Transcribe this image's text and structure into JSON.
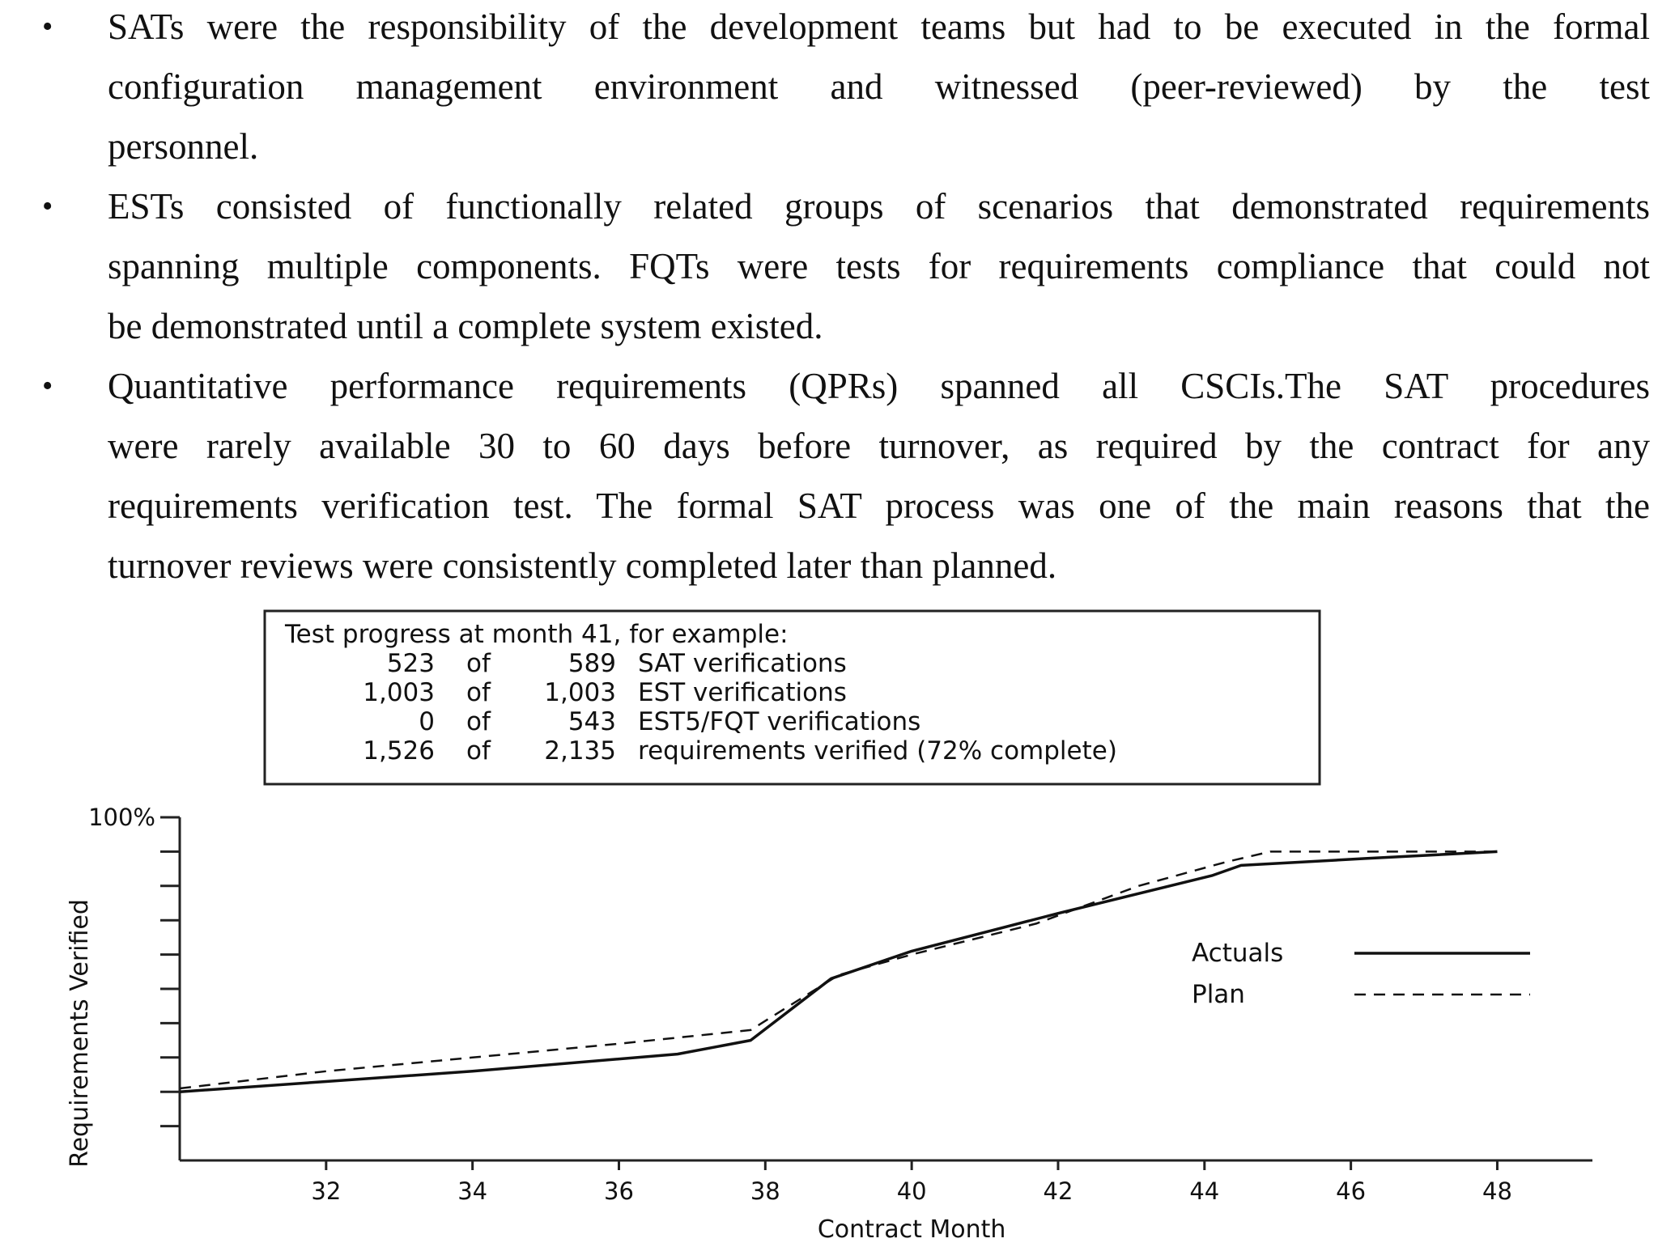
{
  "bullets": [
    {
      "lines": [
        "SATs were the responsibility of the development teams but had to be executed in the formal",
        "configuration management environment and witnessed (peer-reviewed) by the test",
        "personnel."
      ]
    },
    {
      "lines": [
        "ESTs consisted of functionally related groups of scenarios that demonstrated requirements",
        "spanning multiple components. FQTs were tests for requirements compliance that could not",
        "be demonstrated until a complete system existed."
      ]
    },
    {
      "lines": [
        "Quantitative performance requirements (QPRs) spanned all CSCIs.The SAT procedures",
        "were rarely available 30 to 60 days before turnover, as required by the contract for any",
        "requirements verification test. The formal SAT process was one of the main reasons that the",
        "turnover reviews were consistently completed later than planned."
      ]
    }
  ],
  "bullet_symbol": "•",
  "progress_box": {
    "title": "Test progress at month 41, for example:",
    "rows": [
      {
        "done": "523",
        "of": "of",
        "total": "589",
        "label": "SAT verifications"
      },
      {
        "done": "1,003",
        "of": "of",
        "total": "1,003",
        "label": "EST verifications"
      },
      {
        "done": "0",
        "of": "of",
        "total": "543",
        "label": "EST5/FQT verifications"
      },
      {
        "done": "1,526",
        "of": "of",
        "total": "2,135",
        "label": "requirements verified (72% complete)"
      }
    ]
  },
  "chart_data": {
    "type": "line",
    "xlabel": "Contract Month",
    "ylabel": "Requirements Verified",
    "x_ticks": [
      32,
      34,
      36,
      38,
      40,
      42,
      44,
      46,
      48
    ],
    "y_top_label": "100%",
    "xlim": [
      30,
      49.3
    ],
    "ylim": [
      0,
      100
    ],
    "y_minor_ticks": [
      10,
      20,
      30,
      40,
      50,
      60,
      70,
      80,
      90,
      100
    ],
    "legend_position": "right",
    "series": [
      {
        "name": "Actuals",
        "style": "solid",
        "points": [
          [
            30,
            20
          ],
          [
            32,
            23
          ],
          [
            34,
            26
          ],
          [
            36.8,
            31
          ],
          [
            37.8,
            35
          ],
          [
            38.9,
            53
          ],
          [
            40,
            61
          ],
          [
            42,
            72
          ],
          [
            44.1,
            83
          ],
          [
            44.5,
            86
          ],
          [
            46.2,
            88
          ],
          [
            48,
            90
          ]
        ]
      },
      {
        "name": "Plan",
        "style": "dashed",
        "points": [
          [
            30,
            21
          ],
          [
            32,
            26
          ],
          [
            34,
            30
          ],
          [
            36,
            34
          ],
          [
            37.8,
            38
          ],
          [
            39,
            54
          ],
          [
            40,
            60
          ],
          [
            41.7,
            69
          ],
          [
            43.1,
            80
          ],
          [
            44.3,
            87
          ],
          [
            44.9,
            90
          ],
          [
            47.4,
            90
          ],
          [
            48,
            90
          ]
        ]
      }
    ],
    "colors": {
      "line": "#111111",
      "frame": "#222222"
    }
  }
}
